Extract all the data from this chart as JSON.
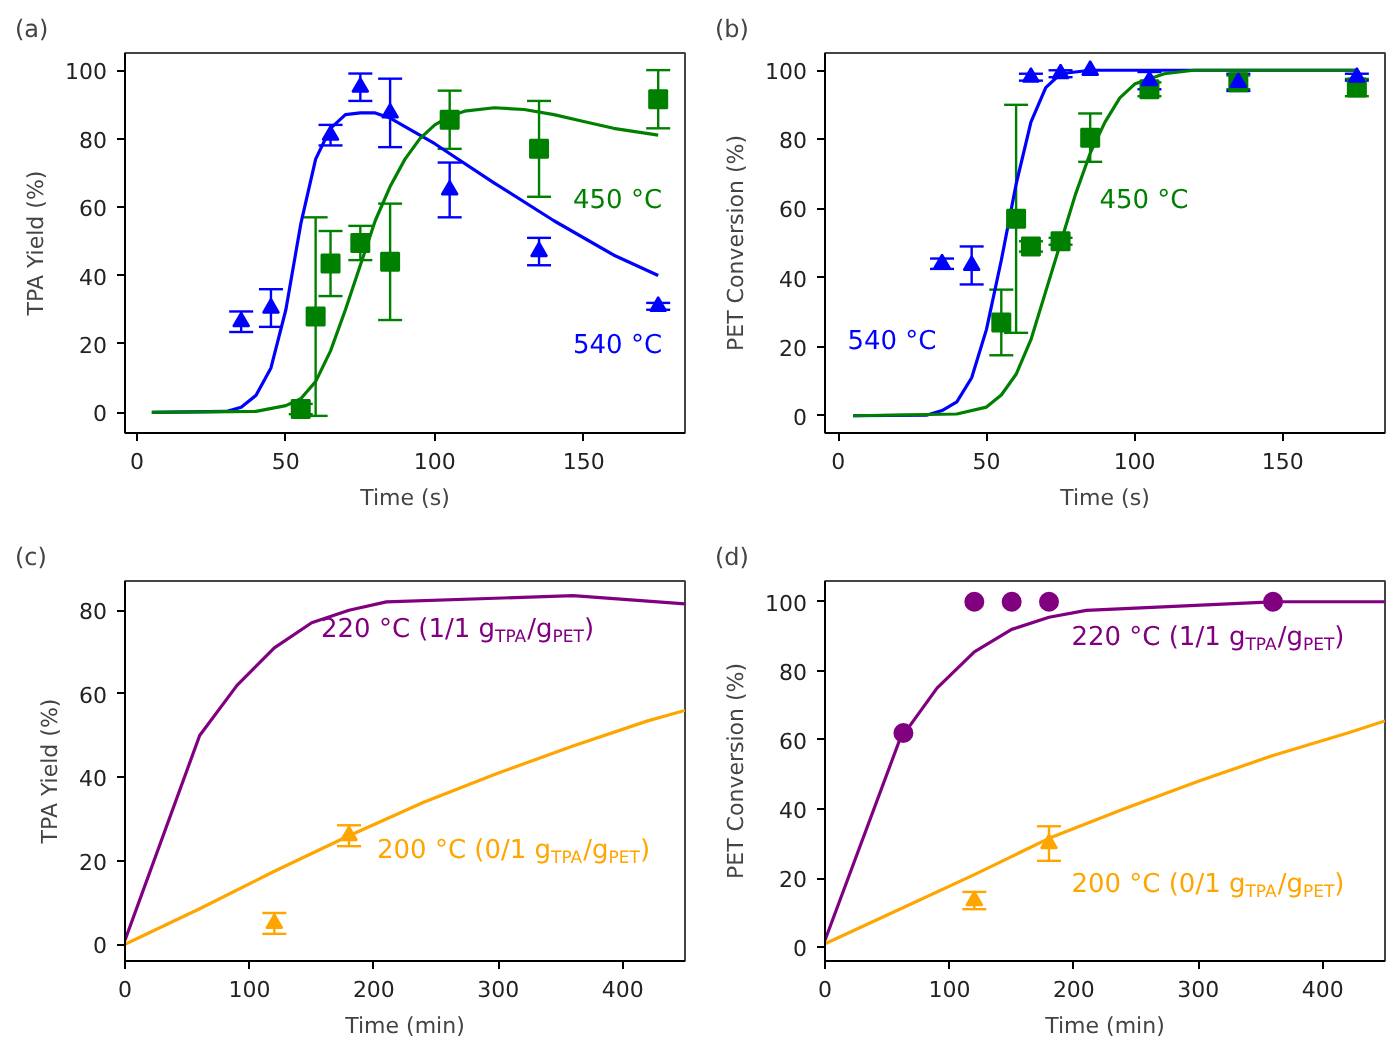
{
  "chart_data": [
    {
      "type": "line",
      "title": "(a)",
      "xlabel": "Time (s)",
      "ylabel": "TPA Yield (%)",
      "xlim": [
        -4,
        184
      ],
      "xticks": [
        0,
        50,
        100,
        150
      ],
      "ylim": [
        -6,
        105
      ],
      "yticks": [
        0,
        20,
        40,
        60,
        80,
        100
      ],
      "grid": false,
      "series": [
        {
          "name": "540 °C",
          "color": "#0000ff",
          "x": [
            5,
            30,
            35,
            40,
            45,
            50,
            55,
            60,
            65,
            70,
            75,
            80,
            85,
            100,
            120,
            140,
            160,
            175
          ],
          "values": [
            0,
            0.3,
            1.5,
            5,
            13,
            30,
            55,
            74,
            83,
            87,
            87.5,
            87.5,
            86,
            78.5,
            67,
            56,
            46,
            40
          ]
        },
        {
          "name": "450 °C",
          "color": "#008000",
          "x": [
            5,
            40,
            50,
            55,
            60,
            65,
            70,
            75,
            80,
            85,
            90,
            95,
            100,
            105,
            110,
            120,
            130,
            140,
            150,
            160,
            175
          ],
          "values": [
            0,
            0.3,
            2,
            4,
            9,
            18,
            30,
            43,
            56,
            66,
            74,
            80,
            84,
            86.5,
            88,
            89,
            88.5,
            87,
            85,
            83,
            81
          ]
        },
        {
          "type": "scatter",
          "marker": "square",
          "color": "#008000",
          "x": [
            55,
            60,
            65,
            75,
            85,
            105,
            135,
            175
          ],
          "values": [
            1,
            28,
            43.5,
            49.5,
            44,
            85.5,
            77,
            91.5
          ],
          "errors": [
            1.5,
            29,
            9.5,
            5,
            17,
            8.5,
            14,
            8.5
          ]
        },
        {
          "type": "scatter",
          "marker": "triangle",
          "color": "#0000ff",
          "x": [
            35,
            45,
            65,
            75,
            85,
            105,
            135,
            175
          ],
          "values": [
            26.5,
            30.5,
            81,
            95,
            87.5,
            65,
            47,
            31
          ],
          "errors": [
            3,
            5.5,
            3,
            4,
            10,
            8,
            4,
            1
          ]
        }
      ]
    },
    {
      "type": "line",
      "title": "(b)",
      "xlabel": "Time (s)",
      "ylabel": "PET Conversion (%)",
      "xlim": [
        -4.5,
        184.5
      ],
      "xticks": [
        0,
        50,
        100,
        150
      ],
      "ylim": [
        -5,
        105
      ],
      "yticks": [
        0,
        20,
        40,
        60,
        80,
        100
      ],
      "grid": false,
      "series": [
        {
          "name": "540 °C",
          "color": "#0000ff",
          "x": [
            5,
            30,
            35,
            40,
            45,
            50,
            55,
            60,
            65,
            70,
            75,
            85,
            175
          ],
          "values": [
            0,
            0.2,
            1.5,
            4,
            11,
            25,
            45,
            67,
            85,
            95,
            99,
            100,
            100
          ]
        },
        {
          "name": "450 °C",
          "color": "#008000",
          "x": [
            5,
            40,
            50,
            55,
            60,
            65,
            70,
            75,
            80,
            85,
            90,
            95,
            100,
            110,
            120,
            175
          ],
          "values": [
            0,
            0.5,
            2.5,
            6,
            12,
            22,
            36,
            50,
            64,
            76,
            85,
            92,
            96,
            99,
            100,
            100
          ]
        },
        {
          "type": "scatter",
          "marker": "square",
          "color": "#008000",
          "x": [
            55,
            60,
            65,
            75,
            85,
            105,
            135,
            175
          ],
          "values": [
            27,
            57,
            49,
            50.5,
            80.5,
            94.5,
            96.5,
            95
          ],
          "errors": [
            9.5,
            33,
            1.5,
            1,
            7,
            2,
            2,
            2.5
          ]
        },
        {
          "type": "scatter",
          "marker": "triangle",
          "color": "#0000ff",
          "x": [
            35,
            45,
            65,
            75,
            85,
            105,
            135,
            175
          ],
          "values": [
            44,
            43.5,
            98,
            99,
            100,
            97,
            96.5,
            98
          ],
          "errors": [
            1.5,
            5.5,
            1,
            1,
            null,
            2.5,
            2.5,
            1
          ]
        }
      ]
    },
    {
      "type": "line",
      "title": "(c)",
      "xlabel": "Time (min)",
      "ylabel": "TPA Yield (%)",
      "xlim": [
        0,
        450
      ],
      "xticks": [
        0,
        100,
        200,
        300,
        400
      ],
      "ylim": [
        -4,
        87
      ],
      "yticks": [
        0,
        20,
        40,
        60,
        80
      ],
      "grid": false,
      "series": [
        {
          "name": "220 °C (1/1 g$_{TPA}$/g$_{PET}$)",
          "color": "#800080",
          "x": [
            0,
            60,
            90,
            120,
            150,
            180,
            210,
            360,
            450
          ],
          "values": [
            1,
            50,
            62,
            71,
            77,
            80,
            82,
            83.5,
            81.5
          ]
        },
        {
          "name": "200 °C (0/1 g$_{TPA}$/g$_{PET}$)",
          "color": "#ffa500",
          "x": [
            0,
            60,
            120,
            180,
            240,
            300,
            360,
            420,
            450
          ],
          "values": [
            0,
            8.5,
            17.5,
            26,
            34,
            41,
            47.5,
            53.5,
            56
          ]
        },
        {
          "type": "scatter",
          "marker": "triangle",
          "color": "#ffa500",
          "x": [
            120,
            180
          ],
          "values": [
            5,
            26
          ],
          "errors": [
            2.5,
            2.5
          ]
        }
      ]
    },
    {
      "type": "line",
      "title": "(d)",
      "xlabel": "Time (min)",
      "ylabel": "PET Conversion (%)",
      "xlim": [
        0,
        450
      ],
      "xticks": [
        0,
        100,
        200,
        300,
        400
      ],
      "ylim": [
        -4,
        106
      ],
      "yticks": [
        0,
        20,
        40,
        60,
        80,
        100
      ],
      "grid": false,
      "series": [
        {
          "name": "220 °C (1/1 g$_{TPA}$/g$_{PET}$)",
          "color": "#800080",
          "x": [
            0,
            60,
            90,
            120,
            150,
            180,
            210,
            360,
            450
          ],
          "values": [
            2,
            60,
            75,
            85.5,
            92,
            95.5,
            97.5,
            100,
            100
          ]
        },
        {
          "name": "200 °C (0/1 g$_{TPA}$/g$_{PET}$)",
          "color": "#ffa500",
          "x": [
            0,
            60,
            120,
            180,
            240,
            300,
            360,
            420,
            450
          ],
          "values": [
            1,
            11,
            21,
            31.5,
            40,
            48,
            55.5,
            62,
            65.5
          ]
        },
        {
          "type": "scatter",
          "marker": "circle",
          "color": "#800080",
          "x": [
            63,
            120,
            150,
            180,
            360
          ],
          "values": [
            62,
            100,
            100,
            100,
            100
          ]
        },
        {
          "type": "scatter",
          "marker": "triangle",
          "color": "#ffa500",
          "x": [
            120,
            180
          ],
          "values": [
            13.5,
            30
          ],
          "errors": [
            2.5,
            5
          ]
        }
      ]
    }
  ]
}
